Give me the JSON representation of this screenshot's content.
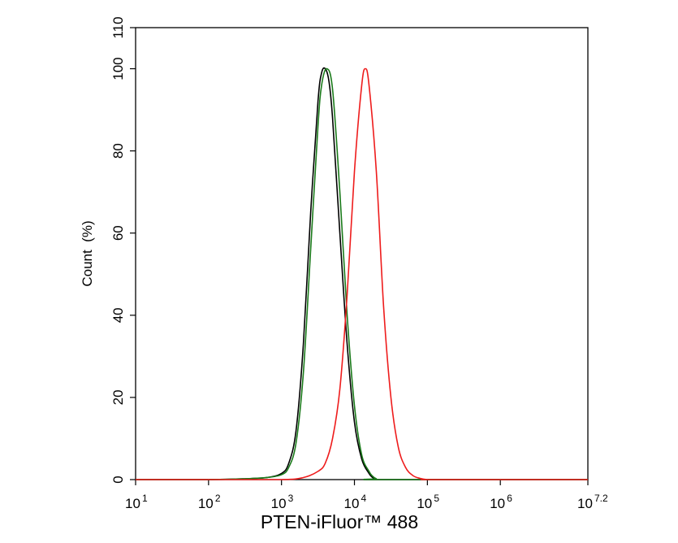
{
  "chart_data": {
    "type": "line",
    "title": "",
    "xlabel": "PTEN-iFluor™ 488",
    "ylabel": "Count  (%)",
    "x_scale": "log10",
    "xlim": [
      1,
      7.2
    ],
    "ylim": [
      0,
      110
    ],
    "x_ticks": [
      {
        "base": "10",
        "exp": "1",
        "value": 1
      },
      {
        "base": "10",
        "exp": "2",
        "value": 2
      },
      {
        "base": "10",
        "exp": "3",
        "value": 3
      },
      {
        "base": "10",
        "exp": "4",
        "value": 4
      },
      {
        "base": "10",
        "exp": "5",
        "value": 5
      },
      {
        "base": "10",
        "exp": "6",
        "value": 6
      },
      {
        "base": "10",
        "exp": "7.2",
        "value": 7.2
      }
    ],
    "y_ticks": [
      {
        "label": "0",
        "value": 0
      },
      {
        "label": "20",
        "value": 20
      },
      {
        "label": "40",
        "value": 40
      },
      {
        "label": "60",
        "value": 60
      },
      {
        "label": "80",
        "value": 80
      },
      {
        "label": "100",
        "value": 100
      },
      {
        "label": "110",
        "value": 110
      }
    ],
    "grid": false,
    "legend": "none",
    "series": [
      {
        "color": "#000000",
        "x": [
          1.0,
          2.0,
          2.5,
          2.8,
          3.0,
          3.1,
          3.2,
          3.3,
          3.4,
          3.5,
          3.55,
          3.6,
          3.65,
          3.7,
          3.8,
          3.9,
          4.0,
          4.1,
          4.2,
          4.25,
          4.3,
          4.35,
          7.2
        ],
        "y": [
          0,
          0,
          0.2,
          0.5,
          1.5,
          4,
          12,
          33,
          65,
          92,
          99,
          100,
          97,
          88,
          60,
          33,
          14,
          5,
          1.5,
          0.5,
          0,
          0,
          0
        ]
      },
      {
        "color": "#1a7a1a",
        "x": [
          1.0,
          2.0,
          2.5,
          2.8,
          3.0,
          3.1,
          3.2,
          3.3,
          3.4,
          3.5,
          3.55,
          3.62,
          3.7,
          3.8,
          3.9,
          4.0,
          4.1,
          4.2,
          4.25,
          4.3,
          4.35,
          7.2
        ],
        "y": [
          0,
          0,
          0.2,
          0.5,
          1.2,
          3,
          9,
          26,
          56,
          86,
          96,
          100,
          95,
          70,
          40,
          18,
          6,
          2,
          0.8,
          0.2,
          0,
          0
        ]
      },
      {
        "color": "#ee1c1c",
        "x": [
          1.0,
          2.0,
          3.0,
          3.3,
          3.5,
          3.6,
          3.7,
          3.8,
          3.9,
          4.0,
          4.1,
          4.15,
          4.2,
          4.3,
          4.4,
          4.5,
          4.6,
          4.7,
          4.8,
          4.9,
          5.0,
          5.1,
          7.2
        ],
        "y": [
          0,
          0,
          0,
          0.5,
          2,
          4,
          10,
          22,
          45,
          75,
          96,
          100,
          96,
          75,
          42,
          20,
          8,
          3,
          1,
          0.3,
          0,
          0,
          0
        ]
      }
    ]
  }
}
